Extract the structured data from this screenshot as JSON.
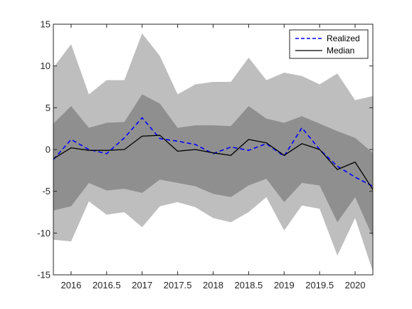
{
  "chart_data": {
    "type": "area",
    "title": "",
    "xlabel": "",
    "ylabel": "",
    "xlim": [
      2015.75,
      2020.25
    ],
    "ylim": [
      -15,
      15
    ],
    "grid": false,
    "legend_position": "top-right",
    "x": [
      2015.75,
      2016.0,
      2016.25,
      2016.5,
      2016.75,
      2017.0,
      2017.25,
      2017.5,
      2017.75,
      2018.0,
      2018.25,
      2018.5,
      2018.75,
      2019.0,
      2019.25,
      2019.5,
      2019.75,
      2020.0,
      2020.25
    ],
    "x_ticks": [
      "2016",
      "2016.5",
      "2017",
      "2017.5",
      "2018",
      "2018.5",
      "2019",
      "2019.5",
      "2020"
    ],
    "x_tick_values": [
      2016,
      2016.5,
      2017,
      2017.5,
      2018,
      2018.5,
      2019,
      2019.5,
      2020
    ],
    "y_ticks": [
      "15",
      "10",
      "5",
      "0",
      "-5",
      "-10",
      "-15"
    ],
    "y_tick_values": [
      15,
      10,
      5,
      0,
      -5,
      -10,
      -15
    ],
    "bands": [
      {
        "role": "outer",
        "color": "#bebebe",
        "upper": [
          9.8,
          12.6,
          6.6,
          8.3,
          8.3,
          13.9,
          11.2,
          6.6,
          7.8,
          8.1,
          8.1,
          11.0,
          8.3,
          9.2,
          8.8,
          7.8,
          9.1,
          5.9,
          6.4
        ],
        "lower": [
          -10.8,
          -11.0,
          -6.2,
          -7.8,
          -7.5,
          -9.3,
          -6.8,
          -6.3,
          -6.9,
          -8.2,
          -8.7,
          -7.5,
          -5.7,
          -9.7,
          -6.7,
          -7.1,
          -12.7,
          -8.2,
          -14.6
        ]
      },
      {
        "role": "inner",
        "color": "#8f8f8f",
        "upper": [
          3.1,
          5.2,
          2.6,
          3.2,
          3.3,
          6.6,
          5.5,
          2.6,
          2.9,
          2.9,
          2.8,
          5.2,
          3.7,
          3.2,
          4.0,
          3.1,
          2.2,
          1.4,
          -0.4
        ],
        "lower": [
          -7.3,
          -6.8,
          -4.0,
          -4.9,
          -4.7,
          -5.2,
          -3.6,
          -4.0,
          -4.4,
          -5.3,
          -5.7,
          -4.3,
          -3.5,
          -6.3,
          -4.0,
          -4.3,
          -8.7,
          -5.7,
          -10.5
        ]
      }
    ],
    "series": [
      {
        "name": "Realized",
        "color": "#0000ff",
        "style": "dashed",
        "values": [
          -1.2,
          1.2,
          0.0,
          -0.5,
          1.4,
          3.8,
          1.3,
          1.0,
          0.6,
          -0.5,
          0.3,
          -0.1,
          0.7,
          -0.8,
          2.6,
          0.0,
          -2.0,
          -3.3,
          -4.4
        ]
      },
      {
        "name": "Median",
        "color": "#000000",
        "style": "solid",
        "values": [
          -1.1,
          0.2,
          -0.1,
          -0.1,
          0.0,
          1.6,
          1.7,
          -0.2,
          0.0,
          -0.4,
          -0.7,
          1.2,
          0.8,
          -0.7,
          0.7,
          0.0,
          -2.4,
          -1.5,
          -4.8
        ]
      }
    ]
  }
}
